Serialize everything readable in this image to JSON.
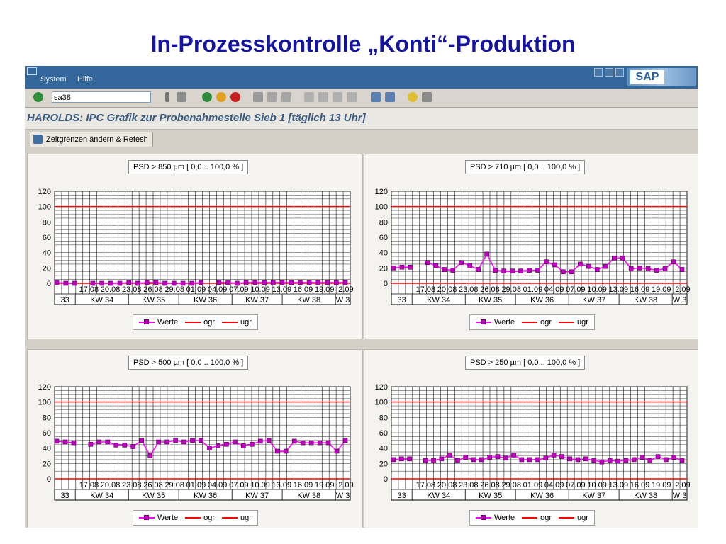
{
  "slide_title": "In-Prozesskontrolle „Konti“-Produktion",
  "sap": {
    "menu": [
      "System",
      "Hilfe"
    ],
    "logo": "SAP",
    "command_field": "sa38",
    "screen_title": "HAROLDS: IPC Grafik zur Probenahmestelle Sieb 1 [täglich 13 Uhr]",
    "refresh_button": "Zeitgrenzen ändern & Refesh"
  },
  "colors": {
    "series": "#ff00ff",
    "marker": "#c000c0",
    "limits": "#ff0000",
    "menubar": "#33669a"
  },
  "legend": {
    "werte": "Werte",
    "ogr": "ogr",
    "ugr": "ugr"
  },
  "chart_data": [
    {
      "type": "line",
      "title": "PSD > 850 µm [ 0,0 .. 100,0 % ]",
      "ylim": [
        0,
        120
      ],
      "yticks": [
        0,
        20,
        40,
        60,
        80,
        100,
        120
      ],
      "date_labels": [
        "17.08",
        "20.08",
        "23.08",
        "26.08",
        "29.08",
        "01.09",
        "04.09",
        "07.09",
        "10.09",
        "13.09",
        "16.09",
        "19.09",
        "2.09"
      ],
      "week_labels": [
        "33",
        "KW 34",
        "KW 35",
        "KW 36",
        "KW 37",
        "KW 38",
        "W 3"
      ],
      "series": [
        {
          "name": "Werte",
          "values": [
            1,
            0,
            0,
            null,
            0,
            0,
            0,
            0,
            1,
            0,
            1,
            1,
            0,
            0,
            0,
            0,
            1,
            null,
            1,
            1,
            0,
            1,
            1,
            1,
            1,
            1,
            1,
            1,
            1,
            1,
            1,
            1,
            1
          ]
        }
      ],
      "limits": [
        {
          "name": "ogr",
          "value": 100
        },
        {
          "name": "ugr",
          "value": 0
        }
      ]
    },
    {
      "type": "line",
      "title": "PSD > 710 µm [ 0,0 .. 100,0 % ]",
      "ylim": [
        0,
        120
      ],
      "yticks": [
        0,
        20,
        40,
        60,
        80,
        100,
        120
      ],
      "date_labels": [
        "17.08",
        "20.08",
        "23.08",
        "26.08",
        "29.08",
        "01.09",
        "04.09",
        "07.09",
        "10.09",
        "13.09",
        "16.09",
        "19.09",
        "2.09"
      ],
      "week_labels": [
        "33",
        "KW 34",
        "KW 35",
        "KW 36",
        "KW 37",
        "KW 38",
        "W 3"
      ],
      "series": [
        {
          "name": "Werte",
          "values": [
            20,
            21,
            21,
            null,
            27,
            23,
            18,
            17,
            27,
            23,
            18,
            38,
            17,
            16,
            16,
            16,
            17,
            17,
            28,
            24,
            15,
            15,
            25,
            22,
            18,
            22,
            33,
            33,
            19,
            20,
            19,
            17,
            19,
            28,
            18
          ]
        }
      ],
      "limits": [
        {
          "name": "ogr",
          "value": 100
        },
        {
          "name": "ugr",
          "value": 0
        }
      ]
    },
    {
      "type": "line",
      "title": "PSD > 500 µm [ 0,0 .. 100,0 % ]",
      "ylim": [
        0,
        120
      ],
      "yticks": [
        0,
        20,
        40,
        60,
        80,
        100,
        120
      ],
      "date_labels": [
        "17.08",
        "20.08",
        "23.08",
        "26.08",
        "29.08",
        "01.09",
        "04.09",
        "07.09",
        "10.09",
        "13.09",
        "16.09",
        "19.09",
        "2.09"
      ],
      "week_labels": [
        "33",
        "KW 34",
        "KW 35",
        "KW 36",
        "KW 37",
        "KW 38",
        "W 3"
      ],
      "series": [
        {
          "name": "Werte",
          "values": [
            49,
            48,
            47,
            null,
            45,
            48,
            48,
            44,
            44,
            42,
            50,
            30,
            48,
            48,
            50,
            48,
            50,
            50,
            40,
            43,
            45,
            48,
            43,
            45,
            49,
            50,
            36,
            36,
            49,
            47,
            47,
            47,
            47,
            36,
            50
          ]
        }
      ],
      "limits": [
        {
          "name": "ogr",
          "value": 100
        },
        {
          "name": "ugr",
          "value": 0
        }
      ]
    },
    {
      "type": "line",
      "title": "PSD > 250 µm [ 0,0 .. 100,0 % ]",
      "ylim": [
        0,
        120
      ],
      "yticks": [
        0,
        20,
        40,
        60,
        80,
        100,
        120
      ],
      "date_labels": [
        "17.08",
        "20.08",
        "23.08",
        "26.08",
        "29.08",
        "01.09",
        "04.09",
        "07.09",
        "10.09",
        "13.09",
        "16.09",
        "19.09",
        "2.09"
      ],
      "week_labels": [
        "33",
        "KW 34",
        "KW 35",
        "KW 36",
        "KW 37",
        "KW 38",
        "W 3"
      ],
      "series": [
        {
          "name": "Werte",
          "values": [
            25,
            26,
            26,
            null,
            24,
            24,
            26,
            31,
            24,
            28,
            25,
            25,
            28,
            29,
            27,
            31,
            25,
            25,
            25,
            27,
            31,
            29,
            26,
            25,
            26,
            24,
            22,
            24,
            23,
            24,
            25,
            28,
            24,
            29,
            25,
            28,
            24
          ]
        }
      ],
      "limits": [
        {
          "name": "ogr",
          "value": 100
        },
        {
          "name": "ugr",
          "value": 0
        }
      ]
    }
  ]
}
